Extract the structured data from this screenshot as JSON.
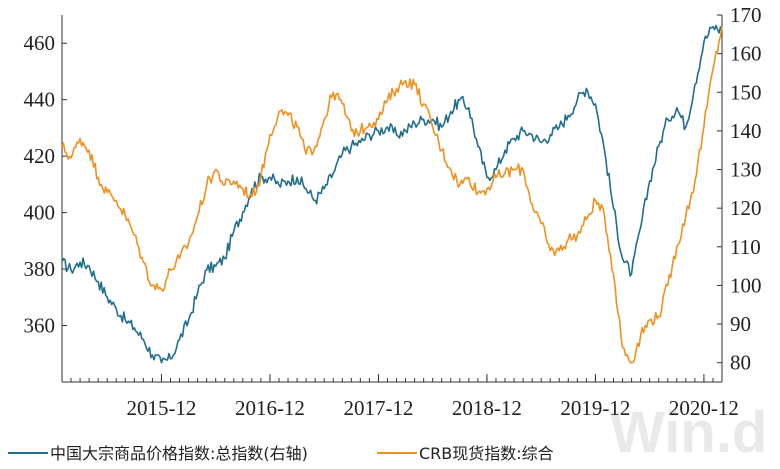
{
  "chart_data": {
    "type": "line",
    "x_range": [
      "2015-01",
      "2021-02"
    ],
    "x_ticks": [
      "2015-12",
      "2016-12",
      "2017-12",
      "2018-12",
      "2019-12",
      "2020-12"
    ],
    "y_left": {
      "range": [
        340,
        470
      ],
      "ticks": [
        360,
        380,
        400,
        420,
        440,
        460
      ]
    },
    "y_right": {
      "range": [
        75,
        170
      ],
      "ticks": [
        80,
        90,
        100,
        110,
        120,
        130,
        140,
        150,
        160,
        170
      ]
    },
    "grid": false,
    "legend_position": "bottom",
    "series": [
      {
        "name": "中国大宗商品价格指数:总指数(右轴)",
        "axis": "right",
        "color": "#1f6e8c",
        "points": [
          [
            "2015-01",
            106
          ],
          [
            "2015-02",
            104
          ],
          [
            "2015-03",
            106
          ],
          [
            "2015-04",
            105
          ],
          [
            "2015-05",
            101
          ],
          [
            "2015-06",
            97
          ],
          [
            "2015-07",
            94
          ],
          [
            "2015-08",
            91
          ],
          [
            "2015-09",
            89
          ],
          [
            "2015-10",
            86
          ],
          [
            "2015-11",
            82
          ],
          [
            "2015-12",
            80
          ],
          [
            "2016-01",
            81
          ],
          [
            "2016-02",
            86
          ],
          [
            "2016-03",
            91
          ],
          [
            "2016-04",
            98
          ],
          [
            "2016-05",
            104
          ],
          [
            "2016-06",
            105
          ],
          [
            "2016-07",
            107
          ],
          [
            "2016-08",
            114
          ],
          [
            "2016-09",
            119
          ],
          [
            "2016-10",
            125
          ],
          [
            "2016-11",
            128
          ],
          [
            "2016-12",
            128
          ],
          [
            "2017-01",
            126
          ],
          [
            "2017-02",
            127
          ],
          [
            "2017-03",
            128
          ],
          [
            "2017-04",
            125
          ],
          [
            "2017-05",
            122
          ],
          [
            "2017-06",
            125
          ],
          [
            "2017-07",
            129
          ],
          [
            "2017-08",
            134
          ],
          [
            "2017-09",
            136
          ],
          [
            "2017-10",
            137
          ],
          [
            "2017-11",
            139
          ],
          [
            "2017-12",
            140
          ],
          [
            "2018-01",
            141
          ],
          [
            "2018-02",
            139
          ],
          [
            "2018-03",
            140
          ],
          [
            "2018-04",
            142
          ],
          [
            "2018-05",
            143
          ],
          [
            "2018-06",
            143
          ],
          [
            "2018-07",
            141
          ],
          [
            "2018-08",
            145
          ],
          [
            "2018-09",
            148
          ],
          [
            "2018-10",
            146
          ],
          [
            "2018-11",
            136
          ],
          [
            "2018-12",
            128
          ],
          [
            "2019-01",
            130
          ],
          [
            "2019-02",
            135
          ],
          [
            "2019-03",
            138
          ],
          [
            "2019-04",
            140
          ],
          [
            "2019-05",
            139
          ],
          [
            "2019-06",
            137
          ],
          [
            "2019-07",
            139
          ],
          [
            "2019-08",
            141
          ],
          [
            "2019-09",
            144
          ],
          [
            "2019-10",
            148
          ],
          [
            "2019-11",
            151
          ],
          [
            "2019-12",
            147
          ],
          [
            "2020-01",
            135
          ],
          [
            "2020-02",
            120
          ],
          [
            "2020-03",
            107
          ],
          [
            "2020-04",
            103
          ],
          [
            "2020-05",
            115
          ],
          [
            "2020-06",
            127
          ],
          [
            "2020-07",
            136
          ],
          [
            "2020-08",
            143
          ],
          [
            "2020-09",
            146
          ],
          [
            "2020-10",
            141
          ],
          [
            "2020-11",
            152
          ],
          [
            "2020-12",
            163
          ],
          [
            "2021-01",
            167
          ],
          [
            "2021-02",
            166
          ]
        ]
      },
      {
        "name": "CRB现货指数:综合",
        "axis": "right",
        "color": "#f0901e",
        "points": [
          [
            "2015-01",
            136
          ],
          [
            "2015-02",
            133
          ],
          [
            "2015-03",
            138
          ],
          [
            "2015-04",
            135
          ],
          [
            "2015-05",
            128
          ],
          [
            "2015-06",
            124
          ],
          [
            "2015-07",
            122
          ],
          [
            "2015-08",
            118
          ],
          [
            "2015-09",
            113
          ],
          [
            "2015-10",
            106
          ],
          [
            "2015-11",
            100
          ],
          [
            "2015-12",
            99
          ],
          [
            "2016-01",
            104
          ],
          [
            "2016-02",
            107
          ],
          [
            "2016-03",
            111
          ],
          [
            "2016-04",
            118
          ],
          [
            "2016-05",
            126
          ],
          [
            "2016-06",
            130
          ],
          [
            "2016-07",
            126
          ],
          [
            "2016-08",
            127
          ],
          [
            "2016-09",
            125
          ],
          [
            "2016-10",
            123
          ],
          [
            "2016-11",
            128
          ],
          [
            "2016-12",
            139
          ],
          [
            "2017-01",
            145
          ],
          [
            "2017-02",
            144
          ],
          [
            "2017-03",
            141
          ],
          [
            "2017-04",
            134
          ],
          [
            "2017-05",
            136
          ],
          [
            "2017-06",
            143
          ],
          [
            "2017-07",
            150
          ],
          [
            "2017-08",
            147
          ],
          [
            "2017-09",
            140
          ],
          [
            "2017-10",
            140
          ],
          [
            "2017-11",
            142
          ],
          [
            "2017-12",
            143
          ],
          [
            "2018-01",
            148
          ],
          [
            "2018-02",
            151
          ],
          [
            "2018-03",
            153
          ],
          [
            "2018-04",
            152
          ],
          [
            "2018-05",
            147
          ],
          [
            "2018-06",
            141
          ],
          [
            "2018-07",
            135
          ],
          [
            "2018-08",
            130
          ],
          [
            "2018-09",
            126
          ],
          [
            "2018-10",
            128
          ],
          [
            "2018-11",
            124
          ],
          [
            "2018-12",
            125
          ],
          [
            "2019-01",
            128
          ],
          [
            "2019-02",
            129
          ],
          [
            "2019-03",
            130
          ],
          [
            "2019-04",
            130
          ],
          [
            "2019-05",
            121
          ],
          [
            "2019-06",
            116
          ],
          [
            "2019-07",
            109
          ],
          [
            "2019-08",
            109
          ],
          [
            "2019-09",
            112
          ],
          [
            "2019-10",
            113
          ],
          [
            "2019-11",
            117
          ],
          [
            "2019-12",
            122
          ],
          [
            "2020-01",
            118
          ],
          [
            "2020-02",
            103
          ],
          [
            "2020-03",
            84
          ],
          [
            "2020-04",
            80
          ],
          [
            "2020-05",
            87
          ],
          [
            "2020-06",
            91
          ],
          [
            "2020-07",
            92
          ],
          [
            "2020-08",
            100
          ],
          [
            "2020-09",
            110
          ],
          [
            "2020-10",
            118
          ],
          [
            "2020-11",
            127
          ],
          [
            "2020-12",
            141
          ],
          [
            "2021-01",
            156
          ],
          [
            "2021-02",
            167
          ]
        ]
      }
    ]
  },
  "watermark": "Win.d"
}
